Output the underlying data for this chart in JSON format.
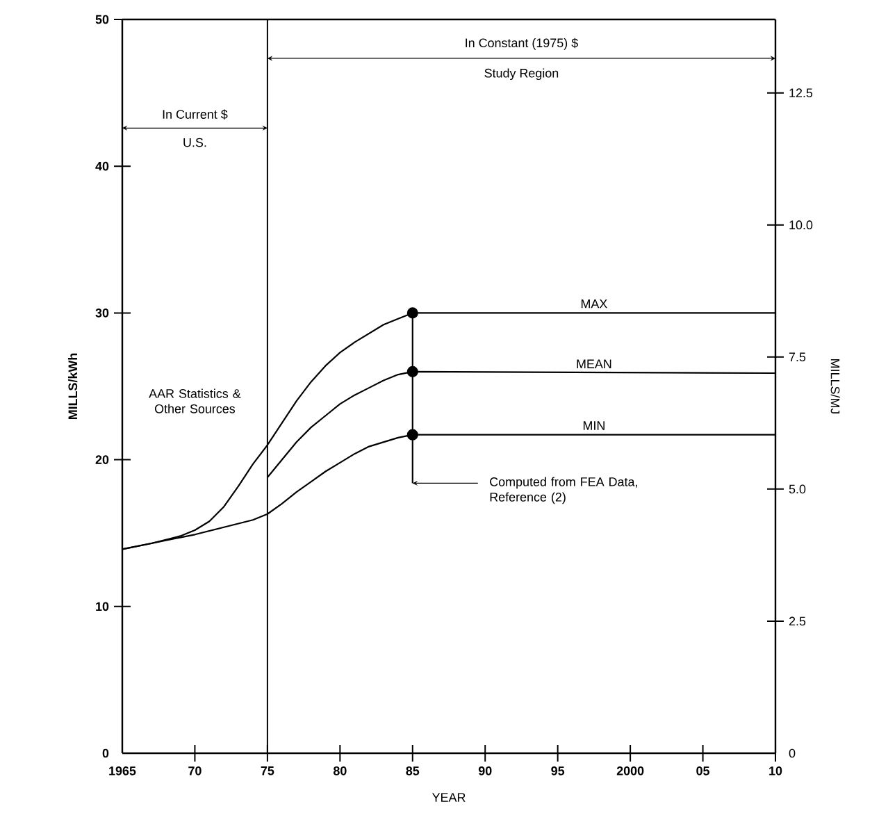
{
  "chart_data": {
    "type": "line",
    "xlabel": "YEAR",
    "ylabel": "MILLS/kWh",
    "y2label": "MILLS/MJ",
    "xlim": [
      1965,
      2010
    ],
    "xticks": [
      1965,
      {
        "value": 1970,
        "label": "70"
      },
      {
        "value": 1975,
        "label": "75"
      },
      {
        "value": 1980,
        "label": "80"
      },
      {
        "value": 1985,
        "label": "85"
      },
      {
        "value": 1990,
        "label": "90"
      },
      {
        "value": 1995,
        "label": "95"
      },
      2000,
      {
        "value": 2005,
        "label": "05"
      },
      {
        "value": 2010,
        "label": "10"
      }
    ],
    "ylim": [
      0,
      50
    ],
    "yticks": [
      0,
      10,
      20,
      30,
      40,
      50
    ],
    "y2lim": [
      0,
      13.89
    ],
    "y2ticks": [
      0,
      2.5,
      {
        "value": 5,
        "label": "5.0"
      },
      7.5,
      {
        "value": 10,
        "label": "10.0"
      },
      12.5
    ],
    "ref_lines": [
      {
        "axis": "x",
        "value": 1975
      }
    ],
    "series": [
      {
        "name": "MAX",
        "color": "#000000",
        "x": [
          1965,
          1967,
          1969,
          1970,
          1971,
          1972,
          1973,
          1974,
          1975,
          1976,
          1977,
          1978,
          1979,
          1980,
          1981,
          1982,
          1983,
          1984,
          1985,
          2010
        ],
        "values": [
          13.9,
          14.3,
          14.8,
          15.2,
          15.8,
          16.8,
          18.2,
          19.7,
          21.0,
          22.5,
          24.0,
          25.3,
          26.4,
          27.3,
          28.0,
          28.6,
          29.2,
          29.6,
          30,
          30
        ]
      },
      {
        "name": "MEAN",
        "color": "#000000",
        "x": [
          1975,
          1976,
          1977,
          1978,
          1979,
          1980,
          1981,
          1982,
          1983,
          1984,
          1985,
          2010
        ],
        "values": [
          18.8,
          20.0,
          21.2,
          22.2,
          23.0,
          23.8,
          24.4,
          24.9,
          25.4,
          25.8,
          26,
          25.9
        ]
      },
      {
        "name": "MIN",
        "color": "#000000",
        "x": [
          1965,
          1967,
          1970,
          1972,
          1974,
          1975,
          1976,
          1977,
          1978,
          1979,
          1980,
          1981,
          1982,
          1983,
          1984,
          1985,
          2010
        ],
        "values": [
          13.9,
          14.3,
          14.9,
          15.4,
          15.9,
          16.3,
          17.0,
          17.8,
          18.5,
          19.2,
          19.8,
          20.4,
          20.9,
          21.2,
          21.5,
          21.7,
          21.7
        ]
      },
      {
        "type": "line",
        "color": "#000000",
        "x": [
          1985,
          1985,
          1985,
          1985
        ],
        "values": [
          30,
          26,
          21.7,
          18.4
        ]
      },
      {
        "type": "scatter",
        "color": "#000000",
        "marker": "circle",
        "x": [
          1985,
          1985,
          1985
        ],
        "values": [
          30,
          26,
          21.7
        ]
      }
    ],
    "annotations": [
      "In Constant (1975) $",
      "Study Region",
      "In Current $",
      "U.S.",
      "AAR Statistics & Other Sources",
      "Computed from FEA Data, Reference (2)"
    ]
  }
}
